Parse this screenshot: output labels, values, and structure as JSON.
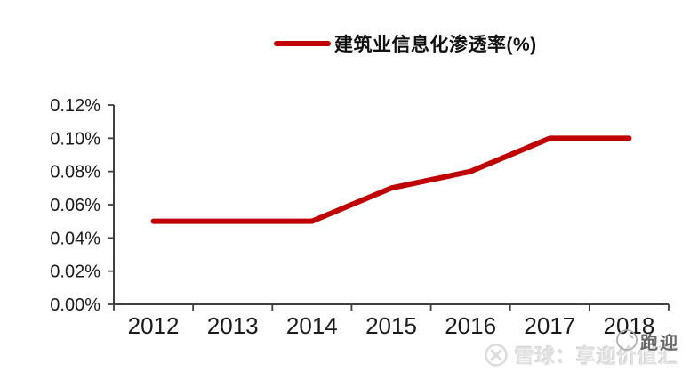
{
  "page": {
    "background": "#ffffff"
  },
  "legend": {
    "label": "建筑业信息化渗透率(%)"
  },
  "chart_data": {
    "type": "line",
    "title": "",
    "categories": [
      "2012",
      "2013",
      "2014",
      "2015",
      "2016",
      "2017",
      "2018"
    ],
    "series": [
      {
        "name": "建筑业信息化渗透率(%)",
        "color": "#C00000",
        "values": [
          0.05,
          0.05,
          0.05,
          0.07,
          0.08,
          0.1,
          0.1
        ]
      }
    ],
    "xlabel": "",
    "ylabel": "",
    "ylim": [
      0,
      0.12
    ],
    "ytick_step": 0.02,
    "ytick_labels": [
      "0.00%",
      "0.02%",
      "0.04%",
      "0.06%",
      "0.08%",
      "0.10%",
      "0.12%"
    ],
    "grid": false,
    "legend_position": "top-center"
  },
  "colors": {
    "line": "#C00000",
    "axis": "#3f3f3f",
    "tick_text": "#1a1a1a",
    "watermark_text": "#e2e2e2",
    "overlay_text": "#6a6a6a"
  },
  "watermark": {
    "logo": "xueqiu-logo",
    "brand_text": "雪球：享迎价值汇",
    "overlay_text": "跑迎"
  }
}
